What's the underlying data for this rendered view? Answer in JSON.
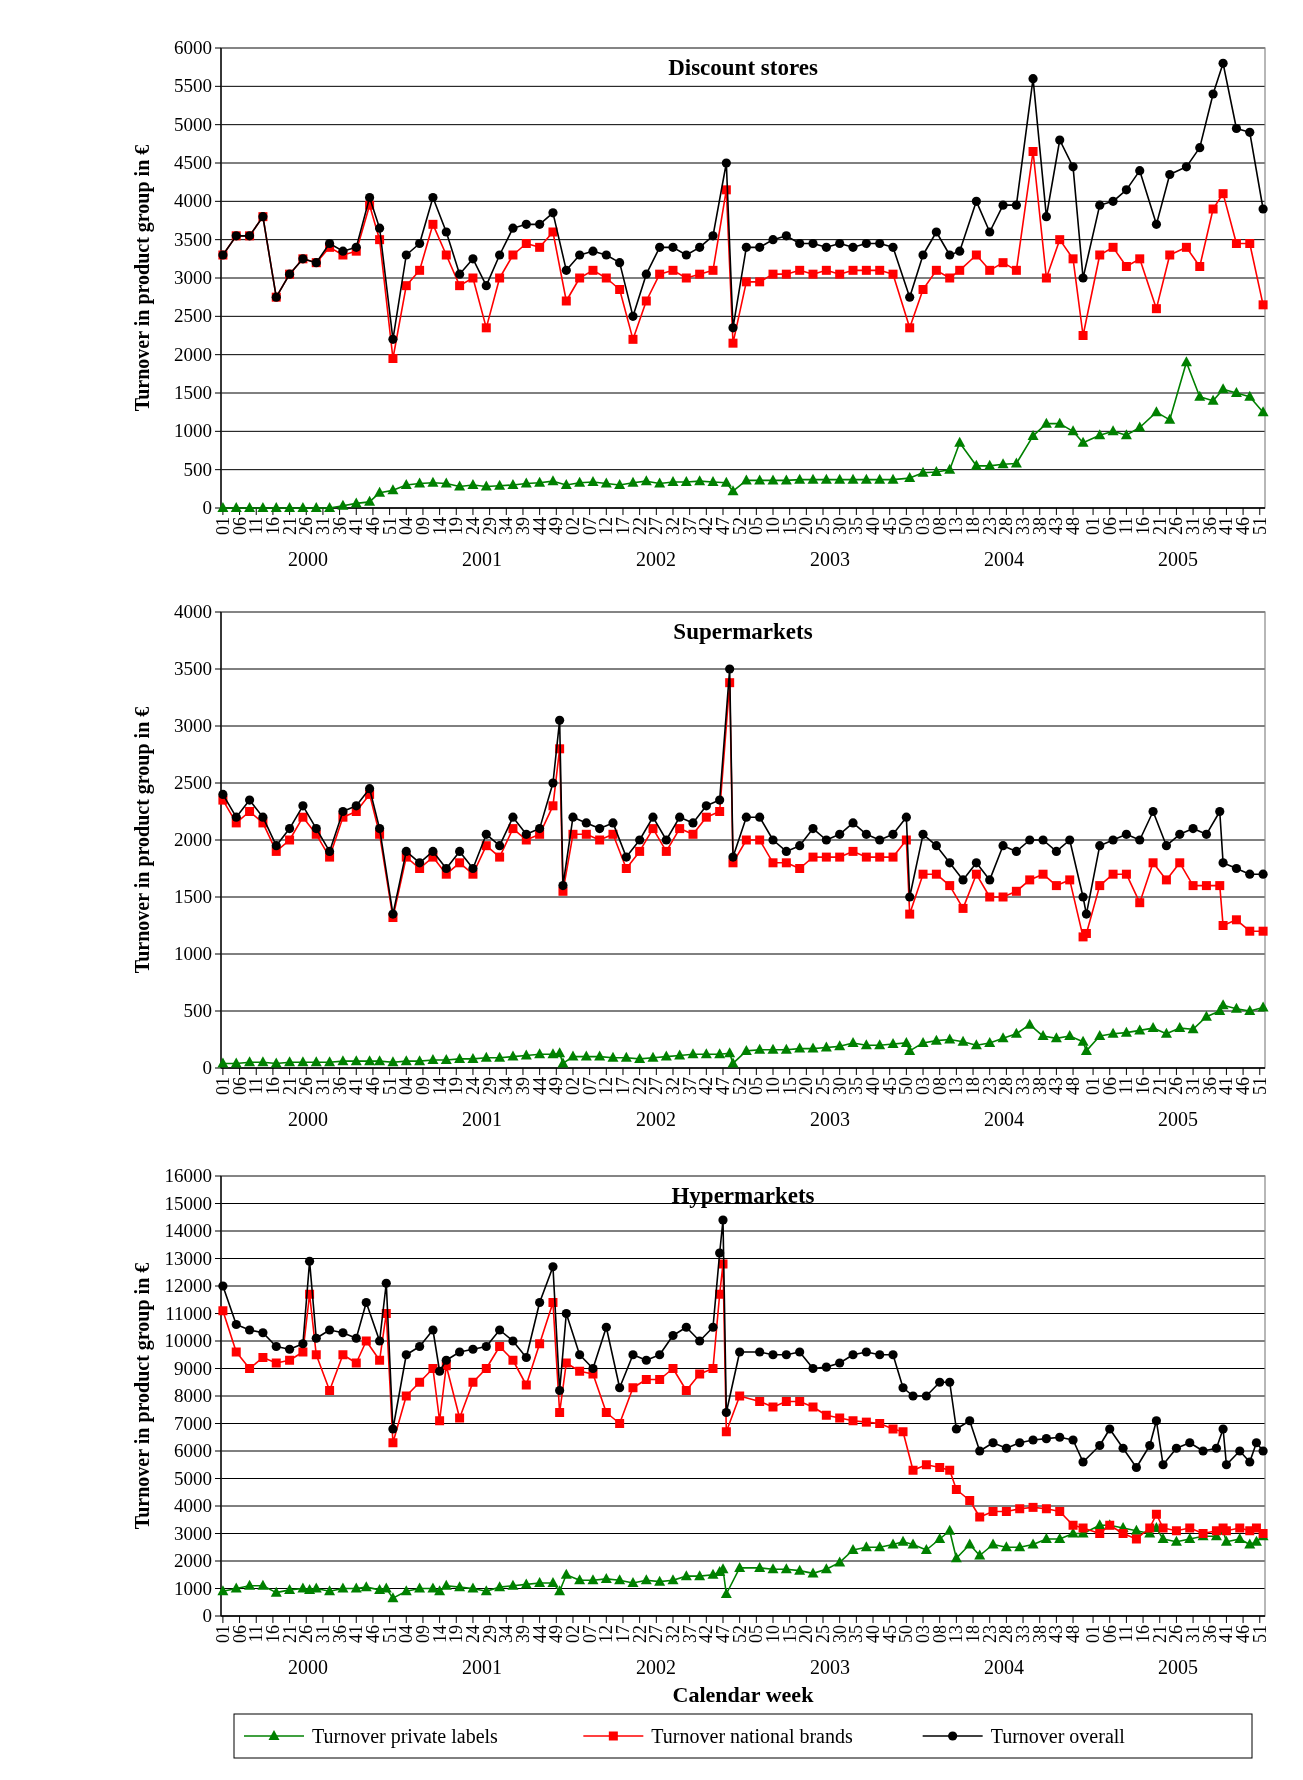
{
  "chart_data": [
    {
      "type": "line",
      "title": "Discount stores",
      "ylabel": "Turnover in product group in €",
      "xlim": [
        "1999-12-30",
        "2005-12-30"
      ],
      "ylim": [
        0,
        6000
      ],
      "yticks": [
        0,
        500,
        1000,
        1500,
        2000,
        2500,
        3000,
        3500,
        4000,
        4500,
        5000,
        5500,
        6000
      ],
      "grid": "y",
      "xticks": [
        {
          "value": "2000-01-03",
          "label": "01"
        },
        {
          "value": "2000-02-07",
          "label": "06"
        },
        {
          "value": "2000-03-13",
          "label": "11"
        },
        {
          "value": "2000-04-17",
          "label": "16"
        },
        {
          "value": "2000-05-22",
          "label": "21"
        },
        {
          "value": "2000-06-26",
          "label": "26"
        },
        {
          "value": "2000-07-31",
          "label": "31"
        },
        {
          "value": "2000-09-04",
          "label": "36"
        },
        {
          "value": "2000-10-09",
          "label": "41"
        },
        {
          "value": "2000-11-13",
          "label": "46"
        },
        {
          "value": "2000-12-18",
          "label": "51"
        },
        {
          "value": "2001-01-22",
          "label": "04"
        },
        {
          "value": "2001-02-26",
          "label": "09"
        },
        {
          "value": "2001-04-02",
          "label": "14"
        },
        {
          "value": "2001-05-07",
          "label": "19"
        },
        {
          "value": "2001-06-11",
          "label": "24"
        },
        {
          "value": "2001-07-16",
          "label": "29"
        },
        {
          "value": "2001-08-20",
          "label": "34"
        },
        {
          "value": "2001-09-24",
          "label": "39"
        },
        {
          "value": "2001-10-29",
          "label": "44"
        },
        {
          "value": "2001-12-03",
          "label": "49"
        },
        {
          "value": "2002-01-07",
          "label": "02"
        },
        {
          "value": "2002-02-11",
          "label": "07"
        },
        {
          "value": "2002-03-18",
          "label": "12"
        },
        {
          "value": "2002-04-22",
          "label": "17"
        },
        {
          "value": "2002-05-27",
          "label": "22"
        },
        {
          "value": "2002-07-01",
          "label": "27"
        },
        {
          "value": "2002-08-05",
          "label": "32"
        },
        {
          "value": "2002-09-09",
          "label": "37"
        },
        {
          "value": "2002-10-14",
          "label": "42"
        },
        {
          "value": "2002-11-18",
          "label": "47"
        },
        {
          "value": "2002-12-23",
          "label": "52"
        },
        {
          "value": "2003-01-27",
          "label": "05"
        },
        {
          "value": "2003-03-03",
          "label": "10"
        },
        {
          "value": "2003-04-07",
          "label": "15"
        },
        {
          "value": "2003-05-12",
          "label": "20"
        },
        {
          "value": "2003-06-16",
          "label": "25"
        },
        {
          "value": "2003-07-21",
          "label": "30"
        },
        {
          "value": "2003-08-25",
          "label": "35"
        },
        {
          "value": "2003-09-29",
          "label": "40"
        },
        {
          "value": "2003-11-03",
          "label": "45"
        },
        {
          "value": "2003-12-08",
          "label": "50"
        },
        {
          "value": "2004-01-12",
          "label": "03"
        },
        {
          "value": "2004-02-16",
          "label": "08"
        },
        {
          "value": "2004-03-22",
          "label": "13"
        },
        {
          "value": "2004-04-26",
          "label": "18"
        },
        {
          "value": "2004-05-31",
          "label": "23"
        },
        {
          "value": "2004-07-05",
          "label": "28"
        },
        {
          "value": "2004-08-09",
          "label": "33"
        },
        {
          "value": "2004-09-13",
          "label": "38"
        },
        {
          "value": "2004-10-18",
          "label": "43"
        },
        {
          "value": "2004-11-22",
          "label": "48"
        },
        {
          "value": "2005-01-03",
          "label": "01"
        },
        {
          "value": "2005-02-07",
          "label": "06"
        },
        {
          "value": "2005-03-14",
          "label": "11"
        },
        {
          "value": "2005-04-18",
          "label": "16"
        },
        {
          "value": "2005-05-23",
          "label": "21"
        },
        {
          "value": "2005-06-27",
          "label": "26"
        },
        {
          "value": "2005-08-01",
          "label": "31"
        },
        {
          "value": "2005-09-05",
          "label": "36"
        },
        {
          "value": "2005-10-10",
          "label": "41"
        },
        {
          "value": "2005-11-14",
          "label": "46"
        },
        {
          "value": "2005-12-19",
          "label": "51"
        }
      ],
      "annotations": [
        "2000",
        "2001",
        "2002",
        "2003",
        "2004",
        "2005"
      ],
      "x": [
        "2000-01-03",
        "2000-01-31",
        "2000-02-28",
        "2000-03-27",
        "2000-04-24",
        "2000-05-22",
        "2000-06-19",
        "2000-07-17",
        "2000-08-14",
        "2000-09-11",
        "2000-10-09",
        "2000-11-06",
        "2000-11-27",
        "2000-12-25",
        "2001-01-22",
        "2001-02-19",
        "2001-03-19",
        "2001-04-16",
        "2001-05-14",
        "2001-06-11",
        "2001-07-09",
        "2001-08-06",
        "2001-09-03",
        "2001-10-01",
        "2001-10-29",
        "2001-11-26",
        "2001-12-24",
        "2002-01-21",
        "2002-02-18",
        "2002-03-18",
        "2002-04-15",
        "2002-05-13",
        "2002-06-10",
        "2002-07-08",
        "2002-08-05",
        "2002-09-02",
        "2002-09-30",
        "2002-10-28",
        "2002-11-25",
        "2002-12-09",
        "2003-01-06",
        "2003-02-03",
        "2003-03-03",
        "2003-03-31",
        "2003-04-28",
        "2003-05-26",
        "2003-06-23",
        "2003-07-21",
        "2003-08-18",
        "2003-09-15",
        "2003-10-13",
        "2003-11-10",
        "2003-12-15",
        "2004-01-12",
        "2004-02-09",
        "2004-03-08",
        "2004-03-29",
        "2004-05-03",
        "2004-05-31",
        "2004-06-28",
        "2004-07-26",
        "2004-08-30",
        "2004-09-27",
        "2004-10-25",
        "2004-11-22",
        "2004-12-13",
        "2005-01-17",
        "2005-02-14",
        "2005-03-14",
        "2005-04-11",
        "2005-05-16",
        "2005-06-13",
        "2005-07-18",
        "2005-08-15",
        "2005-09-12",
        "2005-10-03",
        "2005-10-31",
        "2005-11-28",
        "2005-12-26"
      ],
      "series": [
        {
          "color": "#008000",
          "marker": "triangle",
          "values": [
            0,
            0,
            0,
            0,
            0,
            0,
            0,
            0,
            0,
            30,
            60,
            80,
            200,
            230,
            300,
            320,
            330,
            320,
            280,
            300,
            280,
            290,
            300,
            320,
            330,
            350,
            300,
            330,
            340,
            320,
            300,
            330,
            350,
            320,
            340,
            340,
            350,
            340,
            330,
            220,
            360,
            360,
            360,
            360,
            370,
            370,
            370,
            370,
            370,
            370,
            370,
            370,
            390,
            460,
            470,
            500,
            850,
            550,
            550,
            570,
            580,
            940,
            1100,
            1100,
            1000,
            850,
            950,
            1000,
            950,
            1050,
            1250,
            1150,
            1900,
            1450,
            1400,
            1550,
            1500,
            1450,
            1250
          ]
        },
        {
          "color": "#ff0000",
          "marker": "square",
          "values": [
            3300,
            3550,
            3550,
            3800,
            2750,
            3050,
            3250,
            3200,
            3400,
            3300,
            3350,
            3950,
            3500,
            1950,
            2900,
            3100,
            3700,
            3300,
            2900,
            3000,
            2350,
            3000,
            3300,
            3450,
            3400,
            3600,
            2700,
            3000,
            3100,
            3000,
            2850,
            2200,
            2700,
            3050,
            3100,
            3000,
            3050,
            3100,
            4150,
            2150,
            2950,
            2950,
            3050,
            3050,
            3100,
            3050,
            3100,
            3050,
            3100,
            3100,
            3100,
            3050,
            2350,
            2850,
            3100,
            3000,
            3100,
            3300,
            3100,
            3200,
            3100,
            4650,
            3000,
            3500,
            3250,
            2250,
            3300,
            3400,
            3150,
            3250,
            2600,
            3300,
            3400,
            3150,
            3900,
            4100,
            3450,
            3450,
            2650
          ]
        },
        {
          "color": "#000000",
          "marker": "circle",
          "values": [
            3300,
            3550,
            3550,
            3800,
            2750,
            3050,
            3250,
            3200,
            3450,
            3350,
            3400,
            4050,
            3650,
            2200,
            3300,
            3450,
            4050,
            3600,
            3050,
            3250,
            2900,
            3300,
            3650,
            3700,
            3700,
            3850,
            3100,
            3300,
            3350,
            3300,
            3200,
            2500,
            3050,
            3400,
            3400,
            3300,
            3400,
            3550,
            4500,
            2350,
            3400,
            3400,
            3500,
            3550,
            3450,
            3450,
            3400,
            3450,
            3400,
            3450,
            3450,
            3400,
            2750,
            3300,
            3600,
            3300,
            3350,
            4000,
            3600,
            3950,
            3950,
            5600,
            3800,
            4800,
            4450,
            3000,
            3950,
            4000,
            4150,
            4400,
            3700,
            4350,
            4450,
            4700,
            5400,
            5800,
            4950,
            4900,
            3900
          ]
        }
      ]
    },
    {
      "type": "line",
      "title": "Supermarkets",
      "ylabel": "Turnover in product group in €",
      "xlim": [
        "1999-12-30",
        "2005-12-30"
      ],
      "ylim": [
        0,
        4000
      ],
      "yticks": [
        0,
        500,
        1000,
        1500,
        2000,
        2500,
        3000,
        3500,
        4000
      ],
      "grid": "y",
      "xticks": [
        {
          "value": "2000-01-03",
          "label": "01"
        },
        {
          "value": "2000-02-07",
          "label": "06"
        },
        {
          "value": "2000-03-13",
          "label": "11"
        },
        {
          "value": "2000-04-17",
          "label": "16"
        },
        {
          "value": "2000-05-22",
          "label": "21"
        },
        {
          "value": "2000-06-26",
          "label": "26"
        },
        {
          "value": "2000-07-31",
          "label": "31"
        },
        {
          "value": "2000-09-04",
          "label": "36"
        },
        {
          "value": "2000-10-09",
          "label": "41"
        },
        {
          "value": "2000-11-13",
          "label": "46"
        },
        {
          "value": "2000-12-18",
          "label": "51"
        },
        {
          "value": "2001-01-22",
          "label": "04"
        },
        {
          "value": "2001-02-26",
          "label": "09"
        },
        {
          "value": "2001-04-02",
          "label": "14"
        },
        {
          "value": "2001-05-07",
          "label": "19"
        },
        {
          "value": "2001-06-11",
          "label": "24"
        },
        {
          "value": "2001-07-16",
          "label": "29"
        },
        {
          "value": "2001-08-20",
          "label": "34"
        },
        {
          "value": "2001-09-24",
          "label": "39"
        },
        {
          "value": "2001-10-29",
          "label": "44"
        },
        {
          "value": "2001-12-03",
          "label": "49"
        },
        {
          "value": "2002-01-07",
          "label": "02"
        },
        {
          "value": "2002-02-11",
          "label": "07"
        },
        {
          "value": "2002-03-18",
          "label": "12"
        },
        {
          "value": "2002-04-22",
          "label": "17"
        },
        {
          "value": "2002-05-27",
          "label": "22"
        },
        {
          "value": "2002-07-01",
          "label": "27"
        },
        {
          "value": "2002-08-05",
          "label": "32"
        },
        {
          "value": "2002-09-09",
          "label": "37"
        },
        {
          "value": "2002-10-14",
          "label": "42"
        },
        {
          "value": "2002-11-18",
          "label": "47"
        },
        {
          "value": "2002-12-23",
          "label": "52"
        },
        {
          "value": "2003-01-27",
          "label": "05"
        },
        {
          "value": "2003-03-03",
          "label": "10"
        },
        {
          "value": "2003-04-07",
          "label": "15"
        },
        {
          "value": "2003-05-12",
          "label": "20"
        },
        {
          "value": "2003-06-16",
          "label": "25"
        },
        {
          "value": "2003-07-21",
          "label": "30"
        },
        {
          "value": "2003-08-25",
          "label": "35"
        },
        {
          "value": "2003-09-29",
          "label": "40"
        },
        {
          "value": "2003-11-03",
          "label": "45"
        },
        {
          "value": "2003-12-08",
          "label": "50"
        },
        {
          "value": "2004-01-12",
          "label": "03"
        },
        {
          "value": "2004-02-16",
          "label": "08"
        },
        {
          "value": "2004-03-22",
          "label": "13"
        },
        {
          "value": "2004-04-26",
          "label": "18"
        },
        {
          "value": "2004-05-31",
          "label": "23"
        },
        {
          "value": "2004-07-05",
          "label": "28"
        },
        {
          "value": "2004-08-09",
          "label": "33"
        },
        {
          "value": "2004-09-13",
          "label": "38"
        },
        {
          "value": "2004-10-18",
          "label": "43"
        },
        {
          "value": "2004-11-22",
          "label": "48"
        },
        {
          "value": "2005-01-03",
          "label": "01"
        },
        {
          "value": "2005-02-07",
          "label": "06"
        },
        {
          "value": "2005-03-14",
          "label": "11"
        },
        {
          "value": "2005-04-18",
          "label": "16"
        },
        {
          "value": "2005-05-23",
          "label": "21"
        },
        {
          "value": "2005-06-27",
          "label": "26"
        },
        {
          "value": "2005-08-01",
          "label": "31"
        },
        {
          "value": "2005-09-05",
          "label": "36"
        },
        {
          "value": "2005-10-10",
          "label": "41"
        },
        {
          "value": "2005-11-14",
          "label": "46"
        },
        {
          "value": "2005-12-19",
          "label": "51"
        }
      ],
      "annotations": [
        "2000",
        "2001",
        "2002",
        "2003",
        "2004",
        "2005"
      ],
      "x": [
        "2000-01-03",
        "2000-01-31",
        "2000-02-28",
        "2000-03-27",
        "2000-04-24",
        "2000-05-22",
        "2000-06-19",
        "2000-07-17",
        "2000-08-14",
        "2000-09-11",
        "2000-10-09",
        "2000-11-06",
        "2000-11-27",
        "2000-12-25",
        "2001-01-22",
        "2001-02-19",
        "2001-03-19",
        "2001-04-16",
        "2001-05-14",
        "2001-06-11",
        "2001-07-09",
        "2001-08-06",
        "2001-09-03",
        "2001-10-01",
        "2001-10-29",
        "2001-11-26",
        "2001-12-10",
        "2001-12-17",
        "2002-01-07",
        "2002-02-04",
        "2002-03-04",
        "2002-04-01",
        "2002-04-29",
        "2002-05-27",
        "2002-06-24",
        "2002-07-22",
        "2002-08-19",
        "2002-09-16",
        "2002-10-14",
        "2002-11-11",
        "2002-12-02",
        "2002-12-09",
        "2003-01-06",
        "2003-02-03",
        "2003-03-03",
        "2003-03-31",
        "2003-04-28",
        "2003-05-26",
        "2003-06-23",
        "2003-07-21",
        "2003-08-18",
        "2003-09-15",
        "2003-10-13",
        "2003-11-10",
        "2003-12-08",
        "2003-12-15",
        "2004-01-12",
        "2004-02-09",
        "2004-03-08",
        "2004-04-05",
        "2004-05-03",
        "2004-05-31",
        "2004-06-28",
        "2004-07-26",
        "2004-08-23",
        "2004-09-20",
        "2004-10-18",
        "2004-11-15",
        "2004-12-13",
        "2004-12-20",
        "2005-01-17",
        "2005-02-14",
        "2005-03-14",
        "2005-04-11",
        "2005-05-09",
        "2005-06-06",
        "2005-07-04",
        "2005-08-01",
        "2005-08-29",
        "2005-09-26",
        "2005-10-03",
        "2005-10-31",
        "2005-11-28",
        "2005-12-26"
      ],
      "series": [
        {
          "color": "#008000",
          "marker": "triangle",
          "values": [
            40,
            40,
            50,
            50,
            40,
            50,
            50,
            50,
            50,
            60,
            60,
            60,
            60,
            50,
            60,
            60,
            70,
            70,
            80,
            80,
            90,
            90,
            100,
            110,
            120,
            120,
            130,
            40,
            100,
            100,
            100,
            90,
            90,
            80,
            90,
            100,
            110,
            120,
            120,
            120,
            130,
            40,
            150,
            160,
            160,
            160,
            170,
            170,
            180,
            190,
            220,
            200,
            200,
            210,
            220,
            150,
            220,
            240,
            250,
            230,
            200,
            220,
            260,
            300,
            380,
            280,
            260,
            280,
            230,
            150,
            280,
            300,
            310,
            330,
            350,
            300,
            350,
            340,
            450,
            500,
            550,
            520,
            500,
            530
          ]
        },
        {
          "color": "#ff0000",
          "marker": "square",
          "values": [
            2350,
            2150,
            2250,
            2150,
            1900,
            2000,
            2200,
            2050,
            1850,
            2200,
            2250,
            2400,
            2050,
            1320,
            1850,
            1750,
            1850,
            1700,
            1800,
            1700,
            1950,
            1850,
            2100,
            2000,
            2050,
            2300,
            2800,
            1550,
            2050,
            2050,
            2000,
            2050,
            1750,
            1900,
            2100,
            1900,
            2100,
            2050,
            2200,
            2250,
            3380,
            1800,
            2000,
            2000,
            1800,
            1800,
            1750,
            1850,
            1850,
            1850,
            1900,
            1850,
            1850,
            1850,
            2000,
            1350,
            1700,
            1700,
            1600,
            1400,
            1700,
            1500,
            1500,
            1550,
            1650,
            1700,
            1600,
            1650,
            1150,
            1180,
            1600,
            1700,
            1700,
            1450,
            1800,
            1650,
            1800,
            1600,
            1600,
            1600,
            1250,
            1300,
            1200,
            1200
          ]
        },
        {
          "color": "#000000",
          "marker": "circle",
          "values": [
            2400,
            2200,
            2350,
            2200,
            1950,
            2100,
            2300,
            2100,
            1900,
            2250,
            2300,
            2450,
            2100,
            1350,
            1900,
            1800,
            1900,
            1750,
            1900,
            1750,
            2050,
            1950,
            2200,
            2050,
            2100,
            2500,
            3050,
            1600,
            2200,
            2150,
            2100,
            2150,
            1850,
            2000,
            2200,
            2000,
            2200,
            2150,
            2300,
            2350,
            3500,
            1850,
            2200,
            2200,
            2000,
            1900,
            1950,
            2100,
            2000,
            2050,
            2150,
            2050,
            2000,
            2050,
            2200,
            1500,
            2050,
            1950,
            1800,
            1650,
            1800,
            1650,
            1950,
            1900,
            2000,
            2000,
            1900,
            2000,
            1500,
            1350,
            1950,
            2000,
            2050,
            2000,
            2250,
            1950,
            2050,
            2100,
            2050,
            2250,
            1800,
            1750,
            1700,
            1700
          ]
        }
      ]
    },
    {
      "type": "line",
      "title": "Hypermarkets",
      "ylabel": "Turnover in product group in €",
      "xlabel": "Calendar week",
      "legend": "bottom",
      "xlim": [
        "1999-12-30",
        "2005-12-30"
      ],
      "ylim": [
        0,
        16000
      ],
      "yticks": [
        0,
        1000,
        2000,
        3000,
        4000,
        5000,
        6000,
        7000,
        8000,
        9000,
        10000,
        11000,
        12000,
        13000,
        14000,
        15000,
        16000
      ],
      "grid": "y",
      "xticks": [
        {
          "value": "2000-01-03",
          "label": "01"
        },
        {
          "value": "2000-02-07",
          "label": "06"
        },
        {
          "value": "2000-03-13",
          "label": "11"
        },
        {
          "value": "2000-04-17",
          "label": "16"
        },
        {
          "value": "2000-05-22",
          "label": "21"
        },
        {
          "value": "2000-06-26",
          "label": "26"
        },
        {
          "value": "2000-07-31",
          "label": "31"
        },
        {
          "value": "2000-09-04",
          "label": "36"
        },
        {
          "value": "2000-10-09",
          "label": "41"
        },
        {
          "value": "2000-11-13",
          "label": "46"
        },
        {
          "value": "2000-12-18",
          "label": "51"
        },
        {
          "value": "2001-01-22",
          "label": "04"
        },
        {
          "value": "2001-02-26",
          "label": "09"
        },
        {
          "value": "2001-04-02",
          "label": "14"
        },
        {
          "value": "2001-05-07",
          "label": "19"
        },
        {
          "value": "2001-06-11",
          "label": "24"
        },
        {
          "value": "2001-07-16",
          "label": "29"
        },
        {
          "value": "2001-08-20",
          "label": "34"
        },
        {
          "value": "2001-09-24",
          "label": "39"
        },
        {
          "value": "2001-10-29",
          "label": "44"
        },
        {
          "value": "2001-12-03",
          "label": "49"
        },
        {
          "value": "2002-01-07",
          "label": "02"
        },
        {
          "value": "2002-02-11",
          "label": "07"
        },
        {
          "value": "2002-03-18",
          "label": "12"
        },
        {
          "value": "2002-04-22",
          "label": "17"
        },
        {
          "value": "2002-05-27",
          "label": "22"
        },
        {
          "value": "2002-07-01",
          "label": "27"
        },
        {
          "value": "2002-08-05",
          "label": "32"
        },
        {
          "value": "2002-09-09",
          "label": "37"
        },
        {
          "value": "2002-10-14",
          "label": "42"
        },
        {
          "value": "2002-11-18",
          "label": "47"
        },
        {
          "value": "2002-12-23",
          "label": "52"
        },
        {
          "value": "2003-01-27",
          "label": "05"
        },
        {
          "value": "2003-03-03",
          "label": "10"
        },
        {
          "value": "2003-04-07",
          "label": "15"
        },
        {
          "value": "2003-05-12",
          "label": "20"
        },
        {
          "value": "2003-06-16",
          "label": "25"
        },
        {
          "value": "2003-07-21",
          "label": "30"
        },
        {
          "value": "2003-08-25",
          "label": "35"
        },
        {
          "value": "2003-09-29",
          "label": "40"
        },
        {
          "value": "2003-11-03",
          "label": "45"
        },
        {
          "value": "2003-12-08",
          "label": "50"
        },
        {
          "value": "2004-01-12",
          "label": "03"
        },
        {
          "value": "2004-02-16",
          "label": "08"
        },
        {
          "value": "2004-03-22",
          "label": "13"
        },
        {
          "value": "2004-04-26",
          "label": "18"
        },
        {
          "value": "2004-05-31",
          "label": "23"
        },
        {
          "value": "2004-07-05",
          "label": "28"
        },
        {
          "value": "2004-08-09",
          "label": "33"
        },
        {
          "value": "2004-09-13",
          "label": "38"
        },
        {
          "value": "2004-10-18",
          "label": "43"
        },
        {
          "value": "2004-11-22",
          "label": "48"
        },
        {
          "value": "2005-01-03",
          "label": "01"
        },
        {
          "value": "2005-02-07",
          "label": "06"
        },
        {
          "value": "2005-03-14",
          "label": "11"
        },
        {
          "value": "2005-04-18",
          "label": "16"
        },
        {
          "value": "2005-05-23",
          "label": "21"
        },
        {
          "value": "2005-06-27",
          "label": "26"
        },
        {
          "value": "2005-08-01",
          "label": "31"
        },
        {
          "value": "2005-09-05",
          "label": "36"
        },
        {
          "value": "2005-10-10",
          "label": "41"
        },
        {
          "value": "2005-11-14",
          "label": "46"
        },
        {
          "value": "2005-12-19",
          "label": "51"
        }
      ],
      "annotations": [
        "2000",
        "2001",
        "2002",
        "2003",
        "2004",
        "2005"
      ],
      "x": [
        "2000-01-03",
        "2000-01-31",
        "2000-02-28",
        "2000-03-27",
        "2000-04-24",
        "2000-05-22",
        "2000-06-19",
        "2000-07-03",
        "2000-07-17",
        "2000-08-14",
        "2000-09-11",
        "2000-10-09",
        "2000-10-30",
        "2000-11-27",
        "2000-12-11",
        "2000-12-25",
        "2001-01-22",
        "2001-02-19",
        "2001-03-19",
        "2001-04-02",
        "2001-04-16",
        "2001-05-14",
        "2001-06-11",
        "2001-07-09",
        "2001-08-06",
        "2001-09-03",
        "2001-10-01",
        "2001-10-29",
        "2001-11-26",
        "2001-12-10",
        "2001-12-24",
        "2002-01-21",
        "2002-02-18",
        "2002-03-18",
        "2002-04-15",
        "2002-05-13",
        "2002-06-10",
        "2002-07-08",
        "2002-08-05",
        "2002-09-02",
        "2002-09-30",
        "2002-10-28",
        "2002-11-11",
        "2002-11-18",
        "2002-11-25",
        "2002-12-23",
        "2003-02-03",
        "2003-03-03",
        "2003-03-31",
        "2003-04-28",
        "2003-05-26",
        "2003-06-23",
        "2003-07-21",
        "2003-08-18",
        "2003-09-15",
        "2003-10-13",
        "2003-11-10",
        "2003-12-01",
        "2003-12-22",
        "2004-01-19",
        "2004-02-16",
        "2004-03-08",
        "2004-03-22",
        "2004-04-19",
        "2004-05-10",
        "2004-06-07",
        "2004-07-05",
        "2004-08-02",
        "2004-08-30",
        "2004-09-27",
        "2004-10-25",
        "2004-11-22",
        "2004-12-13",
        "2005-01-17",
        "2005-02-07",
        "2005-03-07",
        "2005-04-04",
        "2005-05-02",
        "2005-05-16",
        "2005-05-30",
        "2005-06-27",
        "2005-07-25",
        "2005-08-22",
        "2005-09-19",
        "2005-10-03",
        "2005-10-10",
        "2005-11-07",
        "2005-11-28",
        "2005-12-12",
        "2005-12-26"
      ],
      "series": [
        {
          "name": "Turnover private labels",
          "color": "#008000",
          "marker": "triangle",
          "values": [
            900,
            1000,
            1100,
            1100,
            850,
            950,
            1000,
            950,
            1000,
            900,
            1000,
            1000,
            1050,
            950,
            1000,
            650,
            900,
            1000,
            1000,
            900,
            1100,
            1050,
            1000,
            900,
            1050,
            1100,
            1150,
            1200,
            1200,
            900,
            1500,
            1300,
            1300,
            1350,
            1300,
            1200,
            1300,
            1250,
            1300,
            1450,
            1450,
            1500,
            1600,
            1700,
            800,
            1750,
            1750,
            1700,
            1700,
            1650,
            1550,
            1700,
            1950,
            2400,
            2500,
            2500,
            2600,
            2700,
            2600,
            2400,
            2800,
            3100,
            2100,
            2600,
            2200,
            2600,
            2500,
            2500,
            2600,
            2800,
            2800,
            3000,
            3000,
            3300,
            3300,
            3200,
            3100,
            3000,
            3200,
            2800,
            2700,
            2800,
            2900,
            2900,
            3100,
            2700,
            2800,
            2600,
            2700,
            2900
          ]
        },
        {
          "name": "Turnover national brands",
          "color": "#ff0000",
          "marker": "square",
          "values": [
            11100,
            9600,
            9000,
            9400,
            9200,
            9300,
            9600,
            11700,
            9500,
            8200,
            9500,
            9200,
            10000,
            9300,
            11000,
            6300,
            8000,
            8500,
            9000,
            7100,
            9100,
            7200,
            8500,
            9000,
            9800,
            9300,
            8400,
            9900,
            11400,
            7400,
            9200,
            8900,
            8800,
            7400,
            7000,
            8300,
            8600,
            8600,
            9000,
            8200,
            8800,
            9000,
            11700,
            12800,
            6700,
            8000,
            7800,
            7600,
            7800,
            7800,
            7600,
            7300,
            7200,
            7100,
            7050,
            7000,
            6800,
            6700,
            5300,
            5500,
            5400,
            5300,
            4600,
            4200,
            3600,
            3800,
            3800,
            3900,
            3950,
            3900,
            3800,
            3300,
            3200,
            3000,
            3300,
            3000,
            2800,
            3200,
            3700,
            3200,
            3100,
            3200,
            3000,
            3100,
            3200,
            3100,
            3200,
            3100,
            3200,
            3000
          ]
        },
        {
          "name": "Turnover overall",
          "color": "#000000",
          "marker": "circle",
          "values": [
            12000,
            10600,
            10400,
            10300,
            9800,
            9700,
            9900,
            12900,
            10100,
            10400,
            10300,
            10100,
            11400,
            10000,
            12100,
            6800,
            9500,
            9800,
            10400,
            8900,
            9300,
            9600,
            9700,
            9800,
            10400,
            10000,
            9400,
            11400,
            12700,
            8200,
            11000,
            9500,
            9000,
            10500,
            8300,
            9500,
            9300,
            9500,
            10200,
            10500,
            10000,
            10500,
            13200,
            14400,
            7400,
            9600,
            9600,
            9500,
            9500,
            9600,
            9000,
            9050,
            9200,
            9500,
            9600,
            9500,
            9500,
            8300,
            8000,
            8000,
            8500,
            8500,
            6800,
            7100,
            6000,
            6300,
            6100,
            6300,
            6400,
            6450,
            6500,
            6400,
            5600,
            6200,
            6800,
            6100,
            5400,
            6200,
            7100,
            5500,
            6100,
            6300,
            6000,
            6100,
            6800,
            5500,
            6000,
            5600,
            6300,
            6000
          ]
        }
      ]
    }
  ]
}
